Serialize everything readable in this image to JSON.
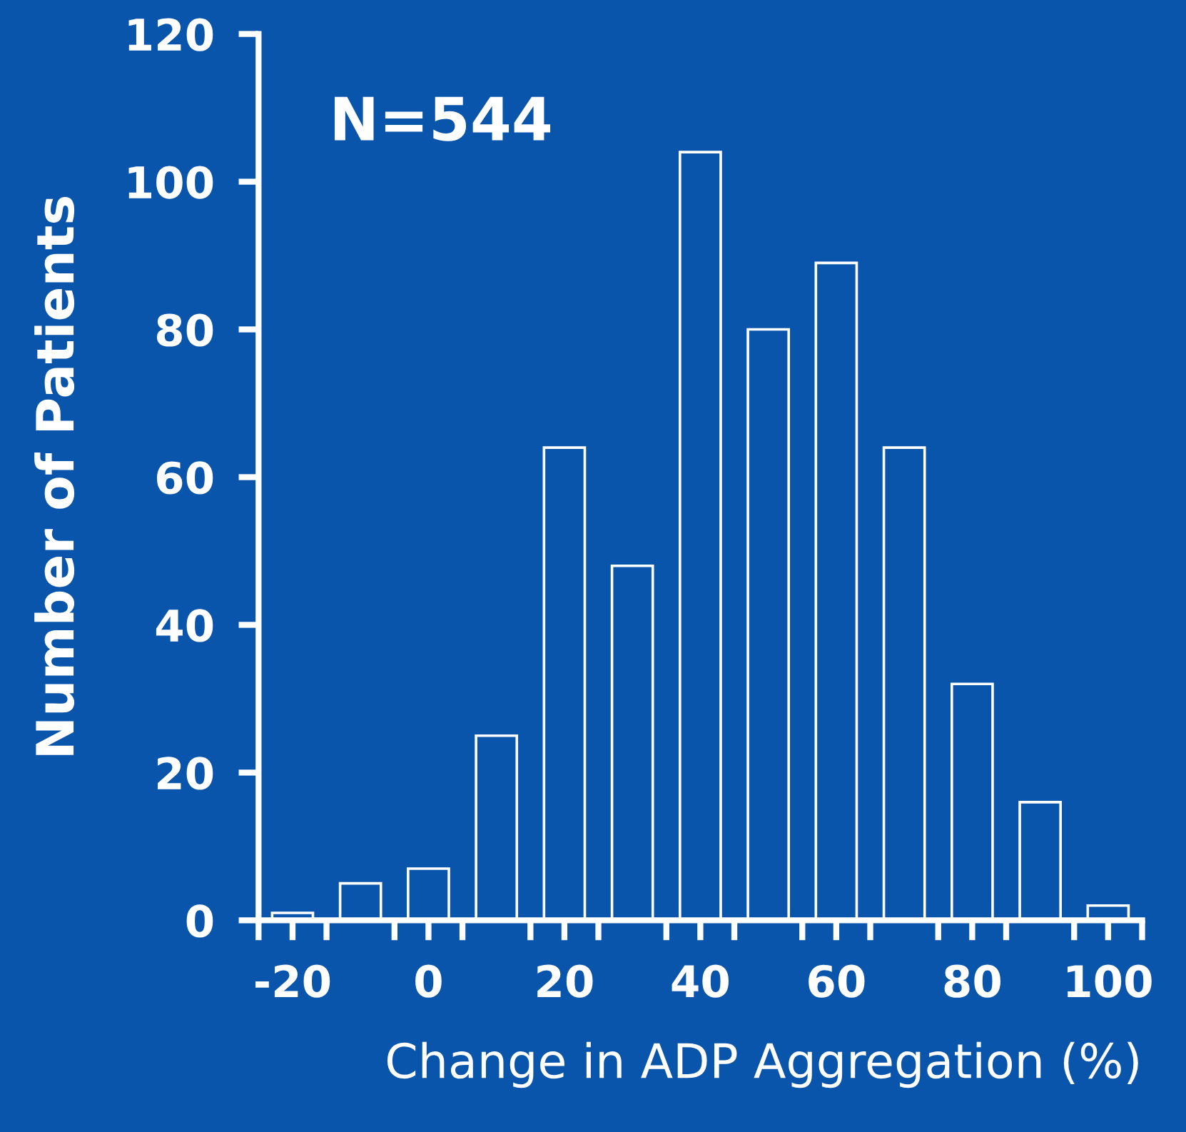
{
  "chart_data": {
    "type": "histogram",
    "ylabel": "Number of Patients",
    "xlabel": "Change in ADP Aggregation (%)",
    "annotations": [
      "N=544"
    ],
    "bins": [
      -25,
      -15,
      -5,
      5,
      15,
      25,
      35,
      45,
      55,
      65,
      75,
      85,
      95,
      105
    ],
    "values": [
      1,
      5,
      7,
      25,
      64,
      48,
      104,
      80,
      89,
      64,
      32,
      16,
      2
    ],
    "color": "#ffffff",
    "xlim": [
      -25,
      105
    ],
    "xticks": [
      {
        "value": -25,
        "label": null
      },
      {
        "value": -15,
        "label": null
      },
      {
        "value": -5,
        "label": null
      },
      {
        "value": 5,
        "label": null
      },
      {
        "value": 15,
        "label": null
      },
      {
        "value": 25,
        "label": null
      },
      {
        "value": 35,
        "label": null
      },
      {
        "value": 45,
        "label": null
      },
      {
        "value": 55,
        "label": null
      },
      {
        "value": 65,
        "label": null
      },
      {
        "value": 75,
        "label": null
      },
      {
        "value": 85,
        "label": null
      },
      {
        "value": 95,
        "label": null
      },
      {
        "value": 105,
        "label": null
      },
      -20,
      0,
      20,
      40,
      60,
      80,
      100
    ],
    "ylim": [
      0,
      120
    ],
    "yticks": [
      0,
      20,
      40,
      60,
      80,
      100,
      120
    ],
    "grid": false,
    "legend": false
  }
}
